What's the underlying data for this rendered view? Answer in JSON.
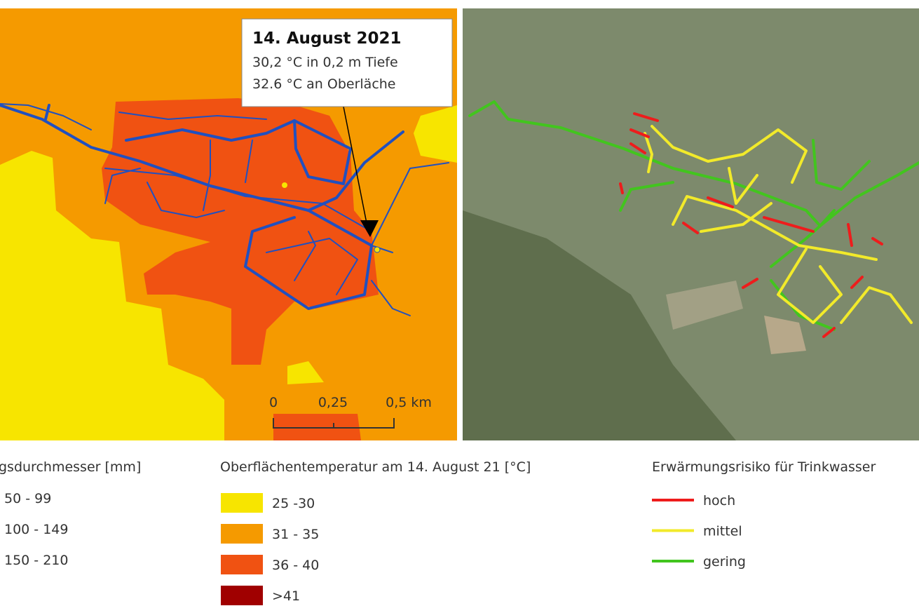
{
  "map_left": {
    "callout": {
      "title": "14. August 2021",
      "lines": [
        "30,2 °C in 0,2 m Tiefe",
        "32.6 °C an Oberläche"
      ]
    },
    "scale_bar": {
      "labels": [
        "0",
        "0,25",
        "0,5 km"
      ]
    }
  },
  "legends": [
    {
      "title": "gsdurchmesser [mm]",
      "items": [
        {
          "label": "50 - 99"
        },
        {
          "label": "100 - 149"
        },
        {
          "label": "150 - 210"
        }
      ]
    },
    {
      "title": "Oberflächentemperatur am 14. August 21 [°C]",
      "items": [
        {
          "label": "25 -30",
          "color": "#f7e500"
        },
        {
          "label": "31 - 35",
          "color": "#f59a00"
        },
        {
          "label": "36 - 40",
          "color": "#f05212"
        },
        {
          "label": ">41",
          "color": "#a00000"
        }
      ]
    },
    {
      "title": "Erwärmungsrisiko für Trinkwasser",
      "items": [
        {
          "label": "hoch",
          "color": "#ee1c1c"
        },
        {
          "label": "mittel",
          "color": "#f2ea2a"
        },
        {
          "label": "gering",
          "color": "#42c51e"
        }
      ]
    }
  ]
}
